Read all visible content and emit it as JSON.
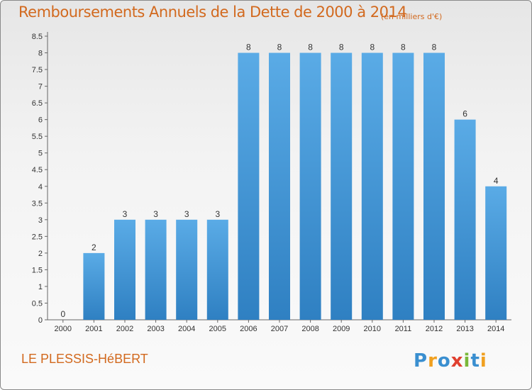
{
  "header": {
    "title": "Remboursements Annuels de la Dette de 2000 à 2014",
    "unit": "(en milliers d'€)"
  },
  "footer": {
    "commune": "LE PLESSIS-HéBERT",
    "logo_text": "Proxiti"
  },
  "colors": {
    "title": "#d2691e",
    "bar_top": "#5aabe6",
    "bar_bottom": "#2f80c2"
  },
  "chart_data": {
    "type": "bar",
    "categories": [
      "2000",
      "2001",
      "2002",
      "2003",
      "2004",
      "2005",
      "2006",
      "2007",
      "2008",
      "2009",
      "2010",
      "2011",
      "2012",
      "2013",
      "2014"
    ],
    "values": [
      0,
      2,
      3,
      3,
      3,
      3,
      8,
      8,
      8,
      8,
      8,
      8,
      8,
      6,
      4
    ],
    "yticks": [
      "0",
      "0.5",
      "1",
      "1.5",
      "2",
      "2.5",
      "3",
      "3.5",
      "4",
      "4.5",
      "5",
      "5.5",
      "6",
      "6.5",
      "7",
      "7.5",
      "8",
      "8.5"
    ],
    "ylim": [
      0,
      8.5
    ],
    "grid": false,
    "legend": "none",
    "data_labels": true
  }
}
